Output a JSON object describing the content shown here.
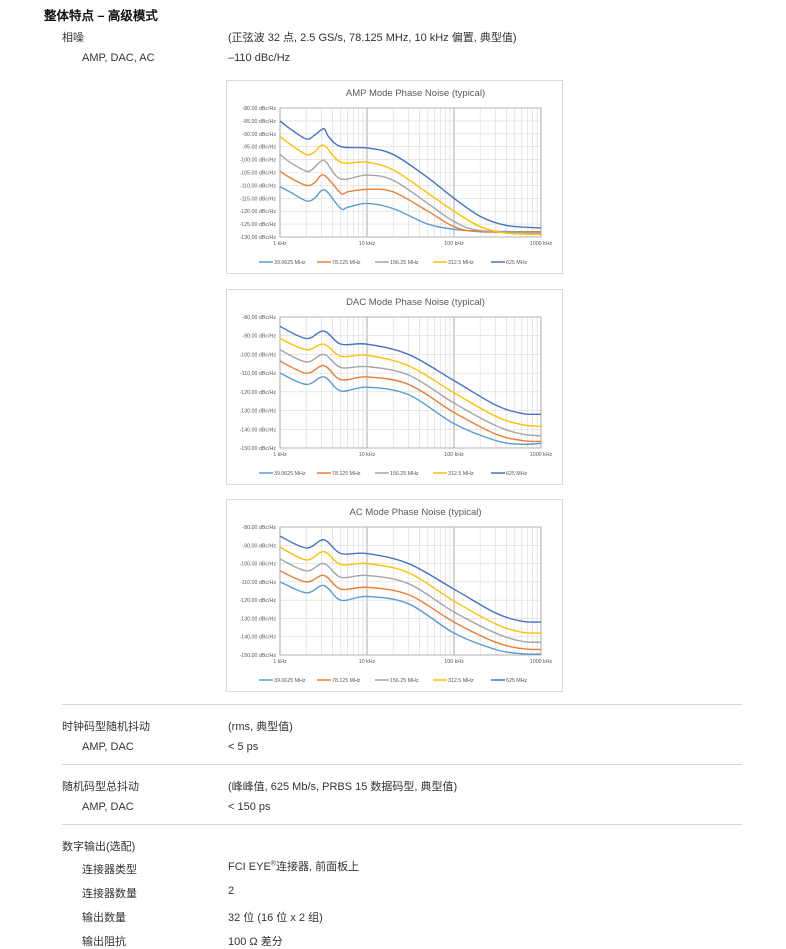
{
  "heading": "整体特点 – 高级模式",
  "phase_noise": {
    "label": "相噪",
    "condition": "(正弦波 32 点, 2.5 GS/s, 78.125 MHz, 10 kHz 偏置, 典型值)",
    "sub_label": "AMP, DAC, AC",
    "sub_value": "–110 dBc/Hz"
  },
  "clock_jitter": {
    "label": "时钟码型随机抖动",
    "condition": "(rms, 典型值)",
    "sub_label": "AMP, DAC",
    "sub_value": "< 5 ps"
  },
  "total_jitter": {
    "label": "随机码型总抖动",
    "condition": "(峰峰值, 625 Mb/s, PRBS 15 数据码型, 典型值)",
    "sub_label": "AMP, DAC",
    "sub_value": "< 150 ps"
  },
  "digital_output": {
    "label": "数字输出(选配)",
    "rows": [
      {
        "label": "连接器类型",
        "value_pre": "FCI EYE",
        "value_sup": "®",
        "value_post": "连接器, 前面板上"
      },
      {
        "label": "连接器数量",
        "value": "2"
      },
      {
        "label": "输出数量",
        "value": "32 位 (16 位 x 2 组)"
      },
      {
        "label": "输出阻抗",
        "value": "100 Ω 差分"
      }
    ]
  },
  "chart_data": [
    {
      "type": "line",
      "title": "AMP Mode Phase Noise (typical)",
      "xscale": "log",
      "xlim": [
        1,
        1000
      ],
      "ylim": [
        -130,
        -80
      ],
      "xticks": [
        "1 kHz",
        "10 kHz",
        "100 kHz",
        "1000 kHz"
      ],
      "yticks": [
        -80,
        -85,
        -90,
        -95,
        -100,
        -105,
        -110,
        -115,
        -120,
        -125,
        -130
      ],
      "ytick_format": "dBc/Hz",
      "grid": true,
      "legend": "bottom",
      "series": [
        {
          "name": "39.0625 MHz",
          "color": "#5b9bd5",
          "points": [
            [
              1,
              -110.5
            ],
            [
              1.3,
              -112.5
            ],
            [
              2,
              -116
            ],
            [
              2.5,
              -115
            ],
            [
              3,
              -112
            ],
            [
              3.5,
              -112.5
            ],
            [
              5,
              -119
            ],
            [
              6,
              -118.5
            ],
            [
              10,
              -117
            ],
            [
              20,
              -119
            ],
            [
              50,
              -125
            ],
            [
              100,
              -127
            ],
            [
              200,
              -127.7
            ],
            [
              1000,
              -128
            ]
          ]
        },
        {
          "name": "78.125 MHz",
          "color": "#ed7d31",
          "points": [
            [
              1,
              -104.5
            ],
            [
              1.3,
              -107
            ],
            [
              2,
              -110
            ],
            [
              2.5,
              -109
            ],
            [
              3.2,
              -106
            ],
            [
              5,
              -113
            ],
            [
              6,
              -112.5
            ],
            [
              10,
              -111.5
            ],
            [
              20,
              -112.5
            ],
            [
              50,
              -120
            ],
            [
              100,
              -126
            ],
            [
              200,
              -128
            ],
            [
              1000,
              -128
            ]
          ]
        },
        {
          "name": "156.25 MHz",
          "color": "#a5a5a5",
          "points": [
            [
              1,
              -98
            ],
            [
              1.3,
              -101
            ],
            [
              2,
              -104.5
            ],
            [
              2.3,
              -104
            ],
            [
              3,
              -100.5
            ],
            [
              3.4,
              -101
            ],
            [
              5,
              -107.5
            ],
            [
              10,
              -106
            ],
            [
              20,
              -108
            ],
            [
              50,
              -117
            ],
            [
              100,
              -124
            ],
            [
              200,
              -127.5
            ],
            [
              1000,
              -128.5
            ]
          ]
        },
        {
          "name": "312.5 MHz",
          "color": "#ffc000",
          "points": [
            [
              1,
              -91
            ],
            [
              1.3,
              -94
            ],
            [
              2,
              -98
            ],
            [
              2.5,
              -97
            ],
            [
              3.2,
              -94.5
            ],
            [
              5,
              -101
            ],
            [
              10,
              -101
            ],
            [
              20,
              -104
            ],
            [
              50,
              -113
            ],
            [
              100,
              -120
            ],
            [
              200,
              -126
            ],
            [
              400,
              -128.5
            ],
            [
              1000,
              -129
            ]
          ]
        },
        {
          "name": "625 MHz",
          "color": "#4472c4",
          "points": [
            [
              1,
              -85
            ],
            [
              1.3,
              -88
            ],
            [
              2,
              -92
            ],
            [
              2.5,
              -90.5
            ],
            [
              3.2,
              -88
            ],
            [
              3.6,
              -91
            ],
            [
              5,
              -95
            ],
            [
              10,
              -95.5
            ],
            [
              20,
              -98
            ],
            [
              50,
              -107
            ],
            [
              100,
              -115
            ],
            [
              200,
              -122
            ],
            [
              400,
              -125.5
            ],
            [
              1000,
              -126.5
            ]
          ]
        }
      ]
    },
    {
      "type": "line",
      "title": "DAC Mode Phase Noise (typical)",
      "xscale": "log",
      "xlim": [
        1,
        1000
      ],
      "ylim": [
        -150,
        -80
      ],
      "xticks": [
        "1 kHz",
        "10 kHz",
        "100 kHz",
        "1000 kHz"
      ],
      "yticks": [
        -80,
        -90,
        -100,
        -110,
        -120,
        -130,
        -140,
        -150
      ],
      "ytick_format": "dBc/Hz",
      "grid": true,
      "legend": "bottom",
      "series": [
        {
          "name": "39.0625 MHz",
          "color": "#5b9bd5",
          "points": [
            [
              1,
              -110
            ],
            [
              2,
              -116
            ],
            [
              3.2,
              -112
            ],
            [
              5,
              -119.5
            ],
            [
              10,
              -117.5
            ],
            [
              30,
              -121.5
            ],
            [
              100,
              -137
            ],
            [
              300,
              -146
            ],
            [
              600,
              -148
            ],
            [
              1000,
              -147.5
            ]
          ]
        },
        {
          "name": "78.125 MHz",
          "color": "#ed7d31",
          "points": [
            [
              1,
              -103.5
            ],
            [
              2,
              -110
            ],
            [
              3.2,
              -106
            ],
            [
              5,
              -113.5
            ],
            [
              10,
              -112
            ],
            [
              30,
              -116
            ],
            [
              100,
              -131
            ],
            [
              300,
              -142.5
            ],
            [
              600,
              -146
            ],
            [
              1000,
              -146.5
            ]
          ]
        },
        {
          "name": "156.25 MHz",
          "color": "#a5a5a5",
          "points": [
            [
              1,
              -97.5
            ],
            [
              2,
              -104
            ],
            [
              3.2,
              -100
            ],
            [
              5,
              -107
            ],
            [
              10,
              -106.5
            ],
            [
              30,
              -111
            ],
            [
              100,
              -126
            ],
            [
              300,
              -138
            ],
            [
              600,
              -142.5
            ],
            [
              1000,
              -143.5
            ]
          ]
        },
        {
          "name": "312.5 MHz",
          "color": "#ffc000",
          "points": [
            [
              1,
              -91.5
            ],
            [
              2,
              -97.5
            ],
            [
              3.2,
              -94.5
            ],
            [
              5,
              -101
            ],
            [
              10,
              -100.5
            ],
            [
              30,
              -106
            ],
            [
              100,
              -120.5
            ],
            [
              300,
              -133
            ],
            [
              600,
              -137.5
            ],
            [
              1000,
              -138.5
            ]
          ]
        },
        {
          "name": "625 MHz",
          "color": "#4472c4",
          "points": [
            [
              1,
              -85
            ],
            [
              2,
              -91.5
            ],
            [
              3.2,
              -87.5
            ],
            [
              5,
              -94.5
            ],
            [
              10,
              -94.5
            ],
            [
              30,
              -100
            ],
            [
              100,
              -114
            ],
            [
              300,
              -127
            ],
            [
              600,
              -131.5
            ],
            [
              1000,
              -132
            ]
          ]
        }
      ]
    },
    {
      "type": "line",
      "title": "AC Mode Phase Noise (typical)",
      "xscale": "log",
      "xlim": [
        1,
        1000
      ],
      "ylim": [
        -150,
        -80
      ],
      "xticks": [
        "1 kHz",
        "10 kHz",
        "100 kHz",
        "1000 kHz"
      ],
      "yticks": [
        -80,
        -90,
        -100,
        -110,
        -120,
        -130,
        -140,
        -150
      ],
      "ytick_format": "dBc/Hz",
      "grid": true,
      "legend": "bottom",
      "series": [
        {
          "name": "39.0625 MHz",
          "color": "#5b9bd5",
          "points": [
            [
              1,
              -110
            ],
            [
              2,
              -116
            ],
            [
              3.2,
              -112
            ],
            [
              5,
              -120
            ],
            [
              10,
              -118
            ],
            [
              30,
              -122
            ],
            [
              100,
              -138
            ],
            [
              300,
              -147
            ],
            [
              600,
              -149.3
            ],
            [
              1000,
              -149.5
            ]
          ]
        },
        {
          "name": "78.125 MHz",
          "color": "#ed7d31",
          "points": [
            [
              1,
              -104
            ],
            [
              2,
              -110
            ],
            [
              3.2,
              -106.5
            ],
            [
              5,
              -114
            ],
            [
              10,
              -113
            ],
            [
              30,
              -117
            ],
            [
              100,
              -132
            ],
            [
              300,
              -143
            ],
            [
              600,
              -146.5
            ],
            [
              1000,
              -147
            ]
          ]
        },
        {
          "name": "156.25 MHz",
          "color": "#a5a5a5",
          "points": [
            [
              1,
              -97.5
            ],
            [
              2,
              -104
            ],
            [
              3.2,
              -100
            ],
            [
              5,
              -107.5
            ],
            [
              10,
              -106.5
            ],
            [
              30,
              -111
            ],
            [
              100,
              -126.5
            ],
            [
              300,
              -138
            ],
            [
              600,
              -142.5
            ],
            [
              1000,
              -143
            ]
          ]
        },
        {
          "name": "312.5 MHz",
          "color": "#ffc000",
          "points": [
            [
              1,
              -91
            ],
            [
              2,
              -98
            ],
            [
              3.2,
              -93.5
            ],
            [
              5,
              -100.5
            ],
            [
              10,
              -100
            ],
            [
              30,
              -105
            ],
            [
              100,
              -120.5
            ],
            [
              300,
              -133
            ],
            [
              600,
              -137.5
            ],
            [
              1000,
              -138
            ]
          ]
        },
        {
          "name": "625 MHz",
          "color": "#4472c4",
          "points": [
            [
              1,
              -85
            ],
            [
              2,
              -91.5
            ],
            [
              3.2,
              -87
            ],
            [
              5,
              -94.5
            ],
            [
              10,
              -94.5
            ],
            [
              30,
              -100
            ],
            [
              100,
              -114
            ],
            [
              300,
              -127
            ],
            [
              600,
              -131.5
            ],
            [
              1000,
              -132
            ]
          ]
        }
      ]
    }
  ]
}
